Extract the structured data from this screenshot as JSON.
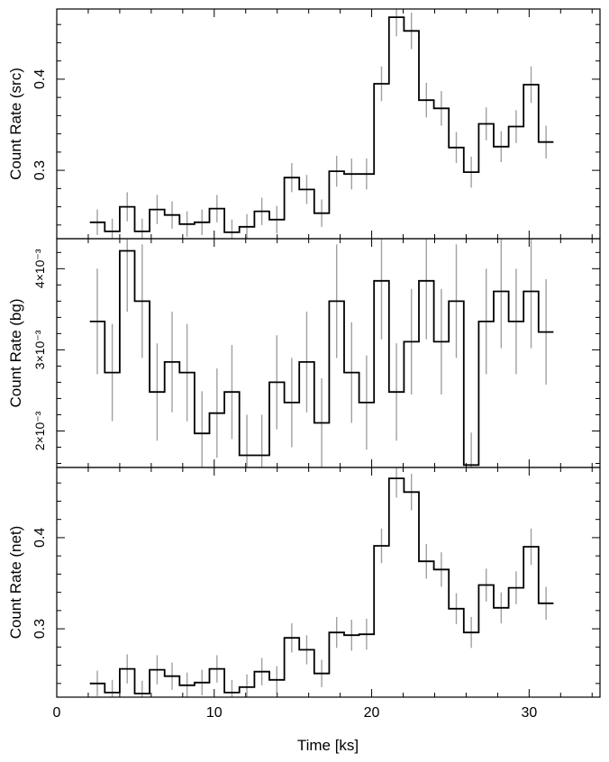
{
  "xlabel": "Time [ks]",
  "chart_data": [
    {
      "type": "line",
      "panel": "src",
      "ylabel": "Count Rate (src)",
      "xlim": [
        0,
        34.5
      ],
      "ylim": [
        0.225,
        0.477
      ],
      "x_ticks": [
        0,
        10,
        20,
        30
      ],
      "y_tick_labels": [
        {
          "value": 0.3,
          "label": "0.3"
        },
        {
          "value": 0.4,
          "label": "0.4"
        }
      ],
      "x_tick_labels_shown": false,
      "bin_start": 2.1,
      "bin_width": 0.95,
      "values": [
        0.243,
        0.233,
        0.26,
        0.233,
        0.257,
        0.251,
        0.241,
        0.243,
        0.258,
        0.232,
        0.238,
        0.255,
        0.246,
        0.292,
        0.279,
        0.253,
        0.299,
        0.296,
        0.296,
        0.395,
        0.468,
        0.453,
        0.377,
        0.368,
        0.325,
        0.298,
        0.351,
        0.326,
        0.348,
        0.394,
        0.331
      ],
      "errors": [
        0.014,
        0.014,
        0.016,
        0.014,
        0.016,
        0.015,
        0.014,
        0.014,
        0.015,
        0.014,
        0.014,
        0.015,
        0.015,
        0.016,
        0.016,
        0.015,
        0.017,
        0.017,
        0.017,
        0.019,
        0.021,
        0.02,
        0.019,
        0.019,
        0.017,
        0.017,
        0.018,
        0.017,
        0.018,
        0.02,
        0.018
      ],
      "line_color": "#000000",
      "error_color": "#a0a0a0"
    },
    {
      "type": "line",
      "panel": "bg",
      "ylabel": "Count Rate (bg)",
      "xlim": [
        0,
        34.5
      ],
      "ylim": [
        0.00155,
        0.00437
      ],
      "x_ticks": [
        0,
        10,
        20,
        30
      ],
      "y_tick_labels": [
        {
          "value": 0.002,
          "label": "2×10⁻³"
        },
        {
          "value": 0.003,
          "label": "3×10⁻³"
        },
        {
          "value": 0.004,
          "label": "4×10⁻³"
        }
      ],
      "x_tick_labels_shown": false,
      "bin_start": 2.1,
      "bin_width": 0.95,
      "values": [
        0.00335,
        0.00272,
        0.00422,
        0.0036,
        0.00248,
        0.00285,
        0.00272,
        0.00197,
        0.00222,
        0.00248,
        0.0017,
        0.0017,
        0.0026,
        0.00235,
        0.00285,
        0.0021,
        0.0036,
        0.00272,
        0.00235,
        0.00385,
        0.00248,
        0.0031,
        0.00385,
        0.0031,
        0.0036,
        0.00158,
        0.00335,
        0.00372,
        0.00335,
        0.00372,
        0.00322
      ],
      "errors": [
        0.00065,
        0.0006,
        0.00075,
        0.0007,
        0.0006,
        0.00062,
        0.0006,
        0.00052,
        0.00055,
        0.00058,
        0.0005,
        0.0005,
        0.00058,
        0.00055,
        0.00062,
        0.00055,
        0.0007,
        0.00062,
        0.00058,
        0.00072,
        0.0006,
        0.00065,
        0.00072,
        0.00065,
        0.0007,
        0.0004,
        0.00065,
        0.0007,
        0.00065,
        0.0007,
        0.00065
      ],
      "line_color": "#000000",
      "error_color": "#a0a0a0"
    },
    {
      "type": "line",
      "panel": "net",
      "ylabel": "Count Rate (net)",
      "xlim": [
        0,
        34.5
      ],
      "ylim": [
        0.225,
        0.477
      ],
      "x_ticks": [
        0,
        10,
        20,
        30
      ],
      "x_tick_labels": [
        "0",
        "10",
        "20",
        "30"
      ],
      "y_tick_labels": [
        {
          "value": 0.3,
          "label": "0.3"
        },
        {
          "value": 0.4,
          "label": "0.4"
        }
      ],
      "x_tick_labels_shown": true,
      "bin_start": 2.1,
      "bin_width": 0.95,
      "values": [
        0.24,
        0.23,
        0.256,
        0.229,
        0.255,
        0.248,
        0.238,
        0.241,
        0.256,
        0.23,
        0.236,
        0.253,
        0.244,
        0.29,
        0.277,
        0.251,
        0.296,
        0.293,
        0.294,
        0.391,
        0.465,
        0.45,
        0.374,
        0.365,
        0.322,
        0.296,
        0.348,
        0.323,
        0.345,
        0.39,
        0.328
      ],
      "errors": [
        0.014,
        0.014,
        0.016,
        0.014,
        0.016,
        0.015,
        0.014,
        0.014,
        0.015,
        0.014,
        0.014,
        0.015,
        0.015,
        0.016,
        0.016,
        0.015,
        0.017,
        0.017,
        0.017,
        0.019,
        0.021,
        0.02,
        0.019,
        0.019,
        0.017,
        0.017,
        0.018,
        0.017,
        0.018,
        0.02,
        0.018
      ],
      "line_color": "#000000",
      "error_color": "#a0a0a0"
    }
  ]
}
